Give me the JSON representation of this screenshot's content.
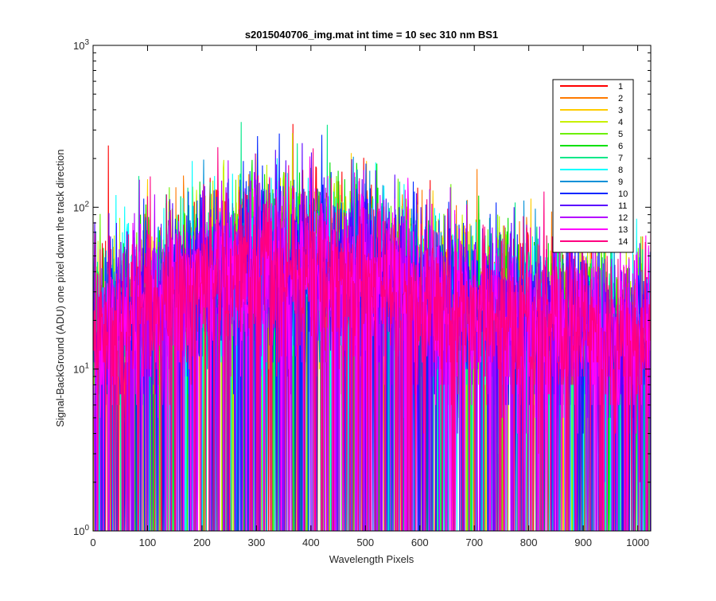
{
  "chart_data": {
    "type": "line",
    "title": "s2015040706_img.mat int time = 10 sec  310 nm BS1",
    "xlabel": "Wavelength Pixels",
    "ylabel": "Signal-BackGround (ADU) one pixel down the track direction",
    "xlim": [
      0,
      1024
    ],
    "ylim": [
      1,
      1000
    ],
    "yscale": "log",
    "grid": false,
    "legend_position": "top-right",
    "x_ticks": [
      0,
      100,
      200,
      300,
      400,
      500,
      600,
      700,
      800,
      900,
      1000
    ],
    "x_tick_labels": [
      "0",
      "100",
      "200",
      "300",
      "400",
      "500",
      "600",
      "700",
      "800",
      "900",
      "1000"
    ],
    "y_ticks": [
      1,
      10,
      100,
      1000
    ],
    "y_tick_labels": [
      {
        "base": "10",
        "exp": "0"
      },
      {
        "base": "10",
        "exp": "1"
      },
      {
        "base": "10",
        "exp": "2"
      },
      {
        "base": "10",
        "exp": "3"
      }
    ],
    "envelope_note_values": {
      "x": [
        0,
        100,
        200,
        300,
        400,
        500,
        600,
        700,
        800,
        900,
        1020
      ],
      "typical_y": [
        15,
        25,
        35,
        45,
        45,
        40,
        30,
        22,
        20,
        18,
        15
      ]
    },
    "series": [
      {
        "name": "1",
        "color": "#ff0000"
      },
      {
        "name": "2",
        "color": "#ff7a00"
      },
      {
        "name": "3",
        "color": "#ffcc00"
      },
      {
        "name": "4",
        "color": "#c8f000"
      },
      {
        "name": "5",
        "color": "#6cf000"
      },
      {
        "name": "6",
        "color": "#00e000"
      },
      {
        "name": "7",
        "color": "#00e888"
      },
      {
        "name": "8",
        "color": "#00ffff"
      },
      {
        "name": "9",
        "color": "#0090d8"
      },
      {
        "name": "10",
        "color": "#0028ff"
      },
      {
        "name": "11",
        "color": "#5a00ff"
      },
      {
        "name": "12",
        "color": "#b400ff"
      },
      {
        "name": "13",
        "color": "#ff00ff"
      },
      {
        "name": "14",
        "color": "#ff0080"
      }
    ]
  }
}
